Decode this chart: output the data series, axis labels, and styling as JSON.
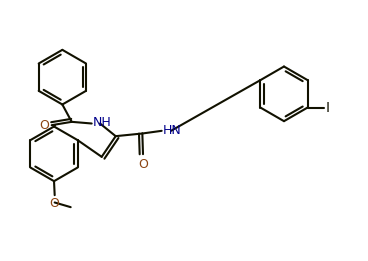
{
  "bg_color": "#ffffff",
  "line_color": "#111100",
  "N_color": "#00008B",
  "O_color": "#8B4513",
  "I_color": "#111100",
  "lw": 1.5,
  "figsize": [
    3.68,
    2.61
  ],
  "dpi": 100,
  "xlim": [
    0,
    11.0
  ],
  "ylim": [
    0,
    7.4
  ]
}
